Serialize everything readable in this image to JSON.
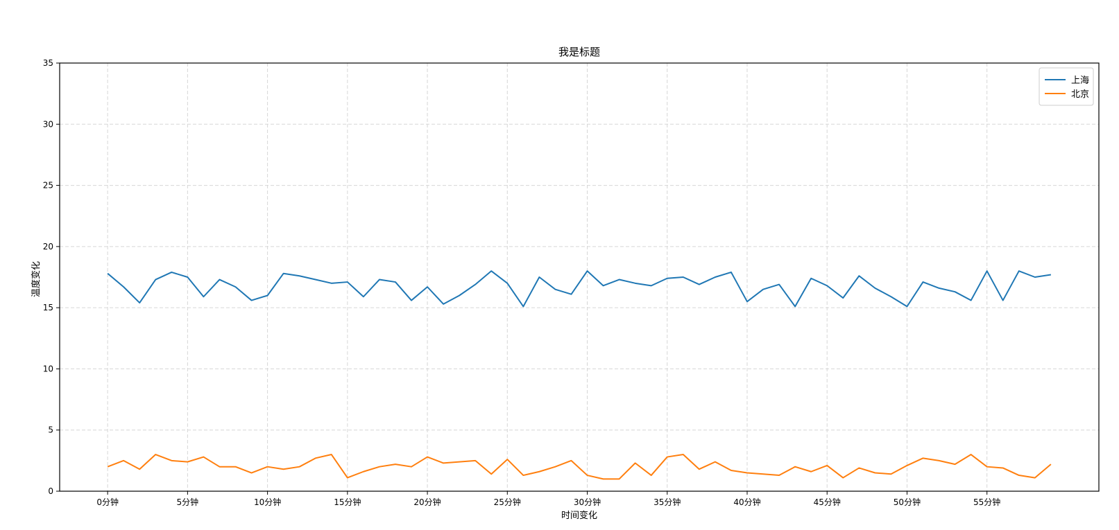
{
  "chart_data": {
    "type": "line",
    "title": "我是标题",
    "xlabel": "时间变化",
    "ylabel": "温度变化",
    "xlim": [
      -3,
      62
    ],
    "ylim": [
      0,
      35
    ],
    "xticks": [
      0,
      5,
      10,
      15,
      20,
      25,
      30,
      35,
      40,
      45,
      50,
      55
    ],
    "xtick_labels": [
      "0分钟",
      "5分钟",
      "10分钟",
      "15分钟",
      "20分钟",
      "25分钟",
      "30分钟",
      "35分钟",
      "40分钟",
      "45分钟",
      "50分钟",
      "55分钟"
    ],
    "yticks": [
      0,
      5,
      10,
      15,
      20,
      25,
      30,
      35
    ],
    "grid": true,
    "grid_style": "dashed",
    "legend_position": "top-right",
    "x": [
      0,
      1,
      2,
      3,
      4,
      5,
      6,
      7,
      8,
      9,
      10,
      11,
      12,
      13,
      14,
      15,
      16,
      17,
      18,
      19,
      20,
      21,
      22,
      23,
      24,
      25,
      26,
      27,
      28,
      29,
      30,
      31,
      32,
      33,
      34,
      35,
      36,
      37,
      38,
      39,
      40,
      41,
      42,
      43,
      44,
      45,
      46,
      47,
      48,
      49,
      50,
      51,
      52,
      53,
      54,
      55,
      56,
      57,
      58,
      59
    ],
    "series": [
      {
        "name": "上海",
        "color": "#1f77b4",
        "values": [
          17.8,
          16.7,
          15.4,
          17.3,
          17.9,
          17.5,
          15.9,
          17.3,
          16.7,
          15.6,
          16.0,
          17.8,
          17.6,
          17.3,
          17.0,
          17.1,
          15.9,
          17.3,
          17.1,
          15.6,
          16.7,
          15.3,
          16.0,
          16.9,
          18.0,
          17.0,
          15.1,
          17.5,
          16.5,
          16.1,
          18.0,
          16.8,
          17.3,
          17.0,
          16.8,
          17.4,
          17.5,
          16.9,
          17.5,
          17.9,
          15.5,
          16.5,
          16.9,
          15.1,
          17.4,
          16.8,
          15.8,
          17.6,
          16.6,
          15.9,
          15.1,
          17.1,
          16.6,
          16.3,
          15.6,
          18.0,
          15.6,
          18.0,
          17.5,
          17.7
        ]
      },
      {
        "name": "北京",
        "color": "#ff7f0e",
        "values": [
          2.0,
          2.5,
          1.8,
          3.0,
          2.5,
          2.4,
          2.8,
          2.0,
          2.0,
          1.5,
          2.0,
          1.8,
          2.0,
          2.7,
          3.0,
          1.1,
          1.6,
          2.0,
          2.2,
          2.0,
          2.8,
          2.3,
          2.4,
          2.5,
          1.4,
          2.6,
          1.3,
          1.6,
          2.0,
          2.5,
          1.3,
          1.0,
          1.0,
          2.3,
          1.3,
          2.8,
          3.0,
          1.8,
          2.4,
          1.7,
          1.5,
          1.4,
          1.3,
          2.0,
          1.6,
          2.1,
          1.1,
          1.9,
          1.5,
          1.4,
          2.1,
          2.7,
          2.5,
          2.2,
          3.0,
          2.0,
          1.9,
          1.3,
          1.1,
          2.2
        ]
      }
    ]
  }
}
